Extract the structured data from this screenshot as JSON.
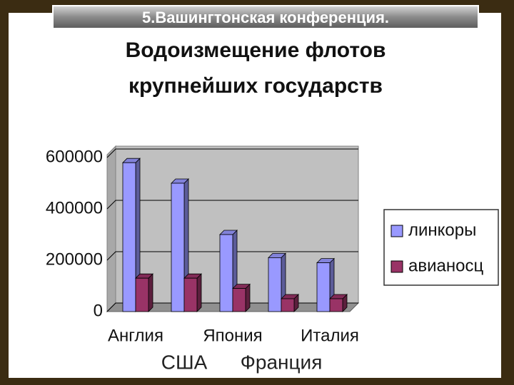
{
  "header": "5.Вашингтонская конференция.",
  "chart_data": {
    "type": "bar3d",
    "title": [
      "Водоизмещение флотов",
      "крупнейших государств"
    ],
    "categories": [
      "Англия",
      "США",
      "Япония",
      "Франция",
      "Италия"
    ],
    "series": [
      {
        "name": "линкоры",
        "color": "#9999ff",
        "values": [
          580000,
          500000,
          300000,
          210000,
          190000
        ]
      },
      {
        "name": "авианосц",
        "color": "#993366",
        "values": [
          130000,
          130000,
          90000,
          50000,
          50000
        ]
      }
    ],
    "ylim": [
      0,
      600000
    ],
    "yticks": [
      0,
      200000,
      400000,
      600000
    ],
    "grid": true,
    "legend": "right"
  }
}
